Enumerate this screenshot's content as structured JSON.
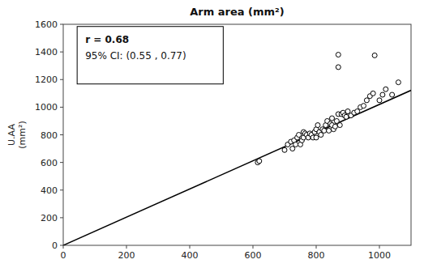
{
  "chart_data": {
    "type": "scatter",
    "title": "Arm area (mm²)",
    "ylabel": "U.AA\n(mm²)",
    "xlim": [
      0,
      1100
    ],
    "ylim": [
      0,
      1600
    ],
    "xticks": [
      0,
      200,
      400,
      600,
      800,
      1000
    ],
    "yticks": [
      0,
      200,
      400,
      600,
      800,
      1000,
      1200,
      1400,
      1600
    ],
    "grid": false,
    "series": [
      {
        "type": "scatter",
        "color": "white",
        "x": [
          615,
          620,
          700,
          710,
          720,
          725,
          730,
          735,
          740,
          745,
          750,
          755,
          760,
          760,
          765,
          770,
          775,
          780,
          785,
          790,
          795,
          800,
          800,
          805,
          810,
          815,
          820,
          825,
          830,
          835,
          840,
          845,
          850,
          850,
          855,
          860,
          865,
          870,
          875,
          880,
          885,
          890,
          895,
          900,
          910,
          920,
          930,
          940,
          950,
          960,
          970,
          980,
          1000,
          1010,
          1020,
          1040,
          1060,
          870,
          870,
          985
        ],
        "values": [
          600,
          610,
          690,
          730,
          750,
          700,
          760,
          730,
          780,
          800,
          730,
          760,
          780,
          820,
          810,
          800,
          780,
          810,
          800,
          780,
          820,
          840,
          780,
          870,
          820,
          800,
          840,
          830,
          870,
          900,
          830,
          880,
          920,
          870,
          840,
          860,
          900,
          950,
          870,
          950,
          960,
          940,
          930,
          970,
          940,
          960,
          970,
          1000,
          1010,
          1050,
          1080,
          1100,
          1050,
          1090,
          1130,
          1090,
          1180,
          1290,
          1380,
          1375
        ]
      },
      {
        "type": "line",
        "color": "black",
        "x": [
          0,
          1100
        ],
        "values": [
          0,
          1122
        ]
      }
    ],
    "annotations": [
      "r = 0.68",
      "95% CI: (0.55 , 0.77)"
    ]
  }
}
